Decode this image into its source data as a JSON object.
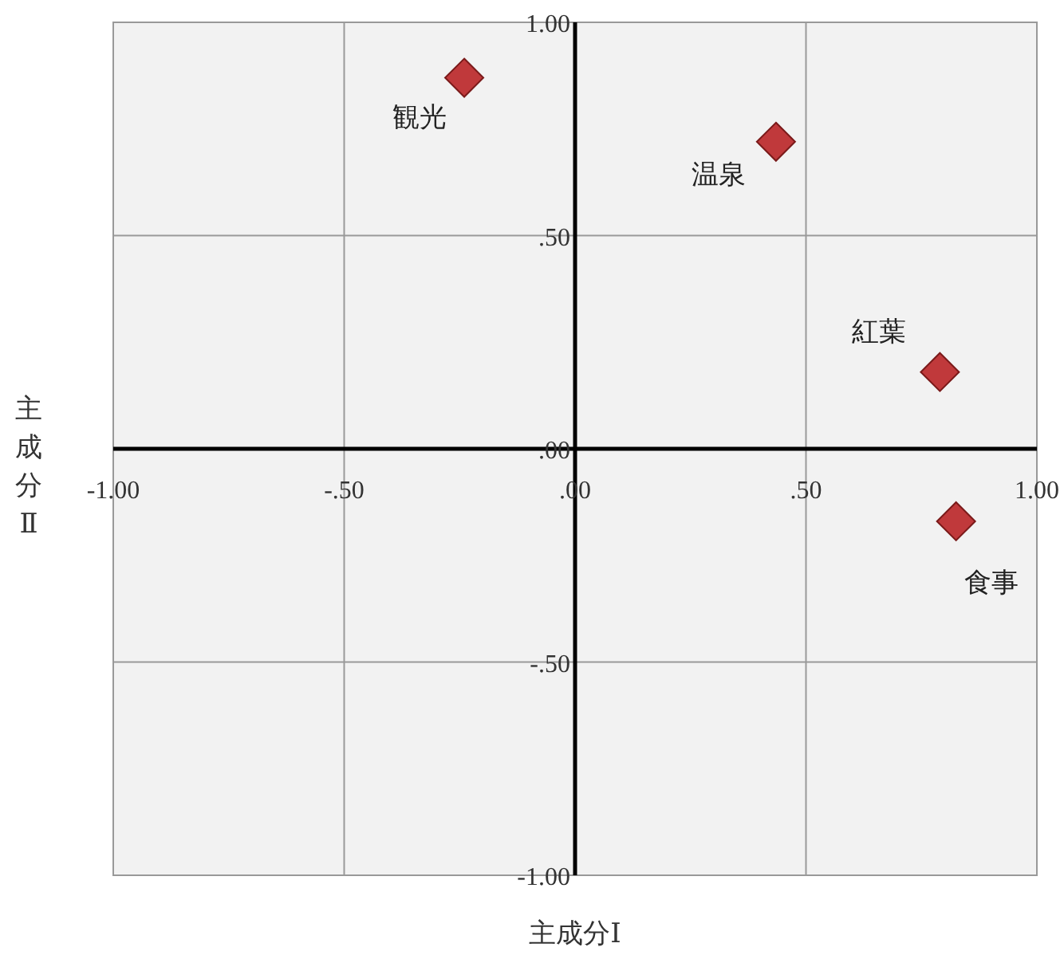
{
  "chart_data": {
    "type": "scatter",
    "xlabel": "主成分Ⅰ",
    "ylabel": "主成分Ⅱ",
    "x": [
      -0.24,
      0.435,
      0.79,
      0.825
    ],
    "series": [
      {
        "color": "#c0393b",
        "values": [
          0.87,
          0.72,
          0.18,
          -0.17
        ]
      }
    ],
    "annotations": [
      {
        "text": "観光",
        "x": -0.24,
        "y": 0.87
      },
      {
        "text": "温泉",
        "x": 0.435,
        "y": 0.72
      },
      {
        "text": "紅葉",
        "x": 0.79,
        "y": 0.18
      },
      {
        "text": "食事",
        "x": 0.825,
        "y": -0.17
      }
    ],
    "xlim": [
      -1,
      1
    ],
    "ylim": [
      -1,
      1
    ],
    "xticks": [
      {
        "value": -1,
        "label": "-1.00"
      },
      {
        "value": -0.5,
        "label": "-.50"
      },
      {
        "value": 0,
        "label": ".00"
      },
      {
        "value": 0.5,
        "label": ".50"
      },
      {
        "value": 1,
        "label": "1.00"
      }
    ],
    "yticks": [
      {
        "value": -1,
        "label": "-1.00"
      },
      {
        "value": -0.5,
        "label": "-.50"
      },
      {
        "value": 0,
        "label": ".00"
      },
      {
        "value": 0.5,
        "label": ".50"
      },
      {
        "value": 1,
        "label": "1.00"
      }
    ],
    "grid": true,
    "marker": "diamond"
  }
}
